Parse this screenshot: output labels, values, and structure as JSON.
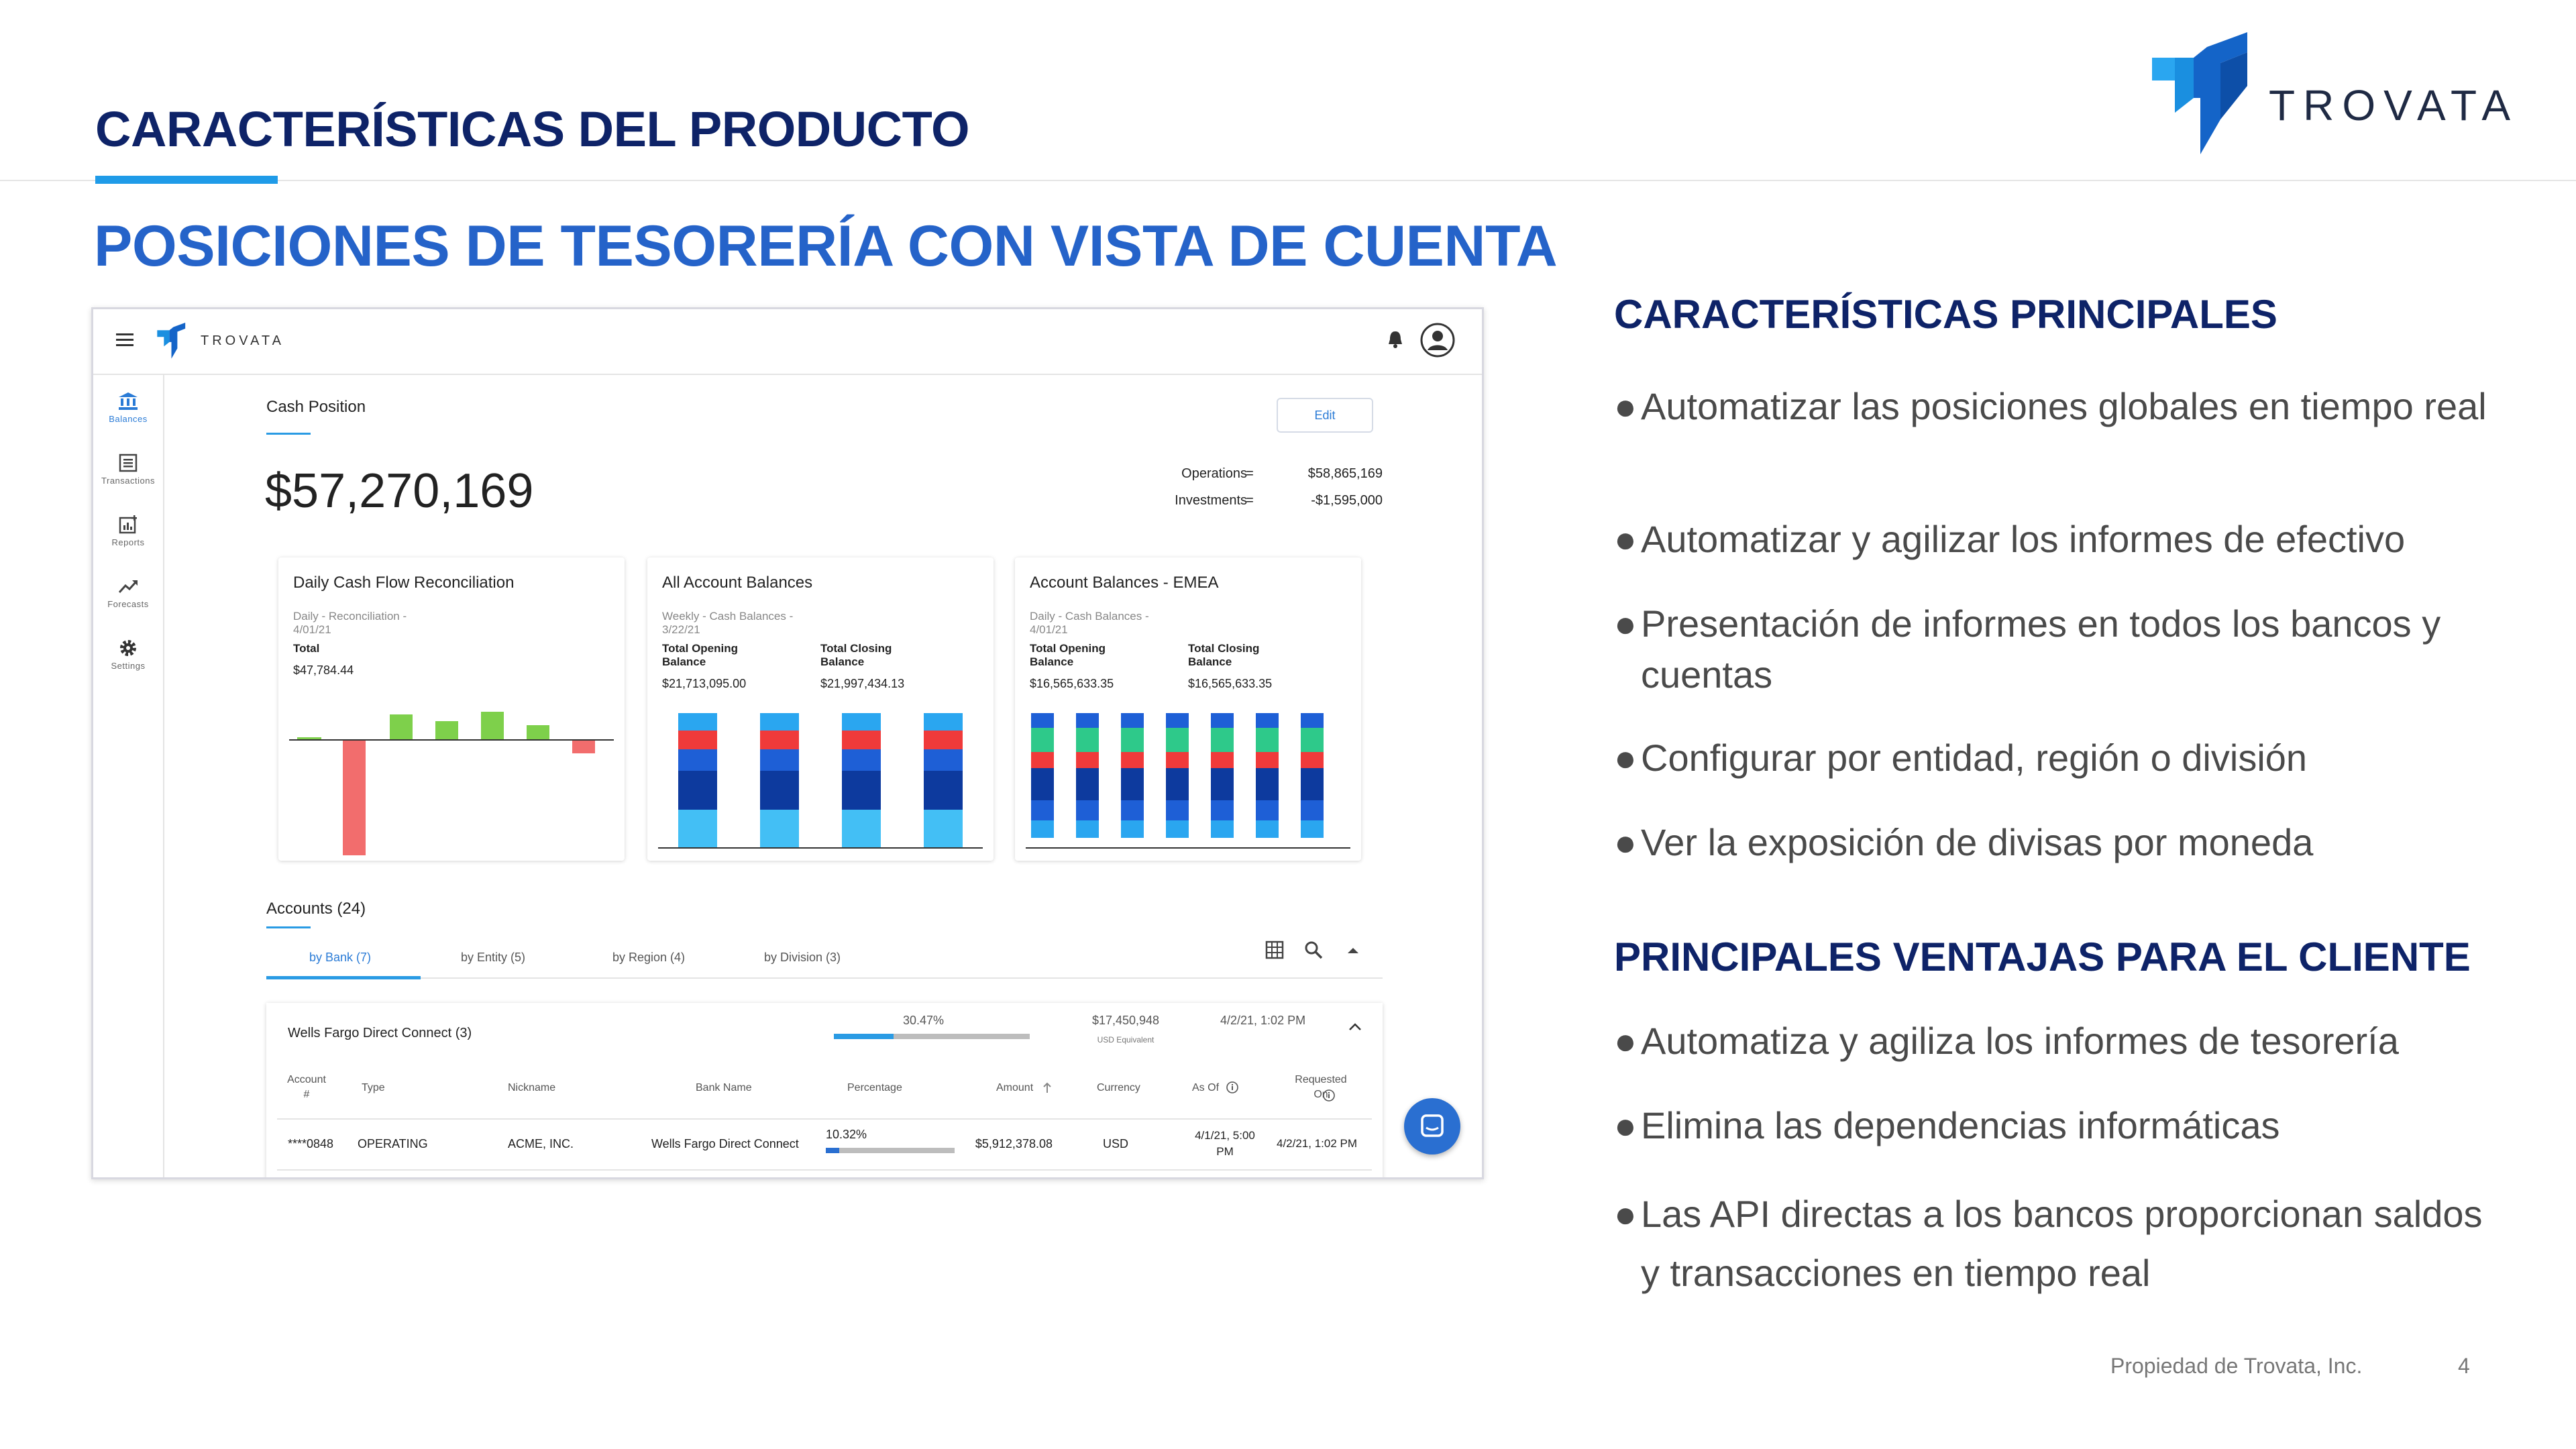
{
  "slide": {
    "title": "CARACTERÍSTICAS DEL PRODUCTO",
    "subtitle": "POSICIONES DE TESORERÍA CON VISTA DE CUENTA",
    "brand_name": "TROVATA",
    "footer": "Propiedad de Trovata, Inc.",
    "page_number": "4"
  },
  "colors": {
    "navy": "#0e2368",
    "blue_heading": "#2563c9",
    "accent": "#1f9be8"
  },
  "app": {
    "brand": "TROVATA",
    "icons": [
      "menu-icon",
      "bell-icon",
      "account-icon"
    ],
    "sidebar": [
      {
        "label": "Balances",
        "icon": "bank-icon",
        "active": true
      },
      {
        "label": "Transactions",
        "icon": "list-icon",
        "active": false
      },
      {
        "label": "Reports",
        "icon": "report-icon",
        "active": false
      },
      {
        "label": "Forecasts",
        "icon": "trend-icon",
        "active": false
      },
      {
        "label": "Settings",
        "icon": "gear-icon",
        "active": false
      }
    ],
    "cash_position": {
      "label": "Cash Position",
      "total": "$57,270,169",
      "edit_label": "Edit",
      "breakdown": [
        {
          "label": "Operations",
          "eq": "=",
          "value": "$58,865,169"
        },
        {
          "label": "Investments",
          "eq": "=",
          "value": "-$1,595,000"
        }
      ]
    },
    "cards": [
      {
        "title": "Daily Cash Flow Reconciliation",
        "subtitle": "Daily - Reconciliation - 4/01/21",
        "label_a": "Total",
        "value_a": "$47,784.44"
      },
      {
        "title": "All Account Balances",
        "subtitle": "Weekly - Cash Balances - 3/22/21",
        "label_a": "Total Opening Balance",
        "value_a": "$21,713,095.00",
        "label_b": "Total Closing Balance",
        "value_b": "$21,997,434.13"
      },
      {
        "title": "Account Balances - EMEA",
        "subtitle": "Daily - Cash Balances - 4/01/21",
        "label_a": "Total Opening Balance",
        "value_a": "$16,565,633.35",
        "label_b": "Total Closing Balance",
        "value_b": "$16,565,633.35"
      }
    ],
    "accounts": {
      "heading": "Accounts (24)",
      "tabs": [
        "by Bank (7)",
        "by Entity (5)",
        "by Region (4)",
        "by Division (3)"
      ],
      "toolbar_icons": [
        "grid-icon",
        "search-icon",
        "collapse-icon"
      ],
      "bank": {
        "name": "Wells Fargo Direct Connect (3)",
        "percent": "30.47%",
        "percent_value": 30.47,
        "amount": "$17,450,948",
        "amount_note": "USD Equivalent",
        "date": "4/2/21, 1:02 PM"
      },
      "columns": [
        "Account #",
        "Type",
        "Nickname",
        "Bank Name",
        "Percentage",
        "Amount",
        "Currency",
        "As Of",
        "Requested On"
      ],
      "rows": [
        {
          "account": "****0848",
          "type": "OPERATING",
          "nickname": "ACME, INC.",
          "bank": "Wells Fargo Direct Connect",
          "percentage": "10.32%",
          "percent_value": 10.32,
          "amount": "$5,912,378.08",
          "currency": "USD",
          "as_of": "4/1/21, 5:00 PM",
          "requested": "4/2/21, 1:02 PM"
        }
      ]
    }
  },
  "features": {
    "heading": "CARACTERÍSTICAS PRINCIPALES",
    "bullets": [
      "Automatizar las posiciones globales en tiempo real",
      "Automatizar y agilizar los informes de efectivo",
      "Presentación de informes en todos los bancos y cuentas",
      "Configurar por entidad, región o división",
      "Ver la exposición de divisas por moneda"
    ]
  },
  "benefits": {
    "heading": "PRINCIPALES VENTAJAS PARA EL CLIENTE",
    "bullets": [
      "Automatiza y agiliza los informes de tesorería",
      "Elimina las dependencias informáticas",
      "Las API directas a los bancos proporcionan saldos y transacciones en tiempo real"
    ]
  }
}
